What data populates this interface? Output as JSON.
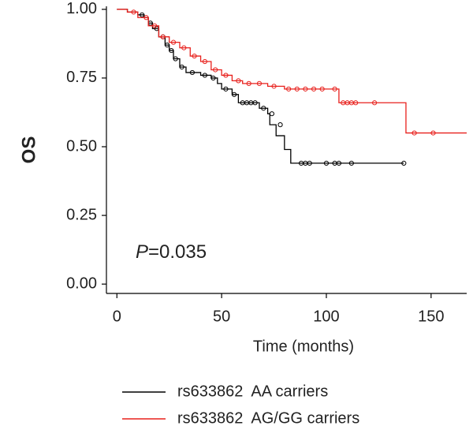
{
  "chart_data": {
    "type": "line",
    "step": true,
    "y_label": "OS",
    "x_label": "Time  (months)",
    "annotation": "P=0.035",
    "xlim": [
      -5,
      167
    ],
    "ylim": [
      -0.034,
      1.011
    ],
    "xticks": [
      0,
      50,
      100,
      150
    ],
    "yticks": [
      {
        "value": 0,
        "label": "0.00"
      },
      {
        "value": 0.25,
        "label": "0.25"
      },
      {
        "value": 0.5,
        "label": "0.50"
      },
      {
        "value": 0.75,
        "label": "0.75"
      },
      {
        "value": 1,
        "label": "1.00"
      }
    ],
    "series": [
      {
        "name": "rs633862  AA carriers",
        "color": "#000000",
        "x": [
          0,
          5,
          10,
          13,
          15,
          17,
          20,
          23,
          25,
          27,
          30,
          33,
          40,
          45,
          48,
          50,
          55,
          58,
          65,
          68,
          72,
          73,
          76,
          80,
          83,
          137
        ],
        "values": [
          1.0,
          0.99,
          0.98,
          0.97,
          0.95,
          0.93,
          0.9,
          0.87,
          0.85,
          0.82,
          0.79,
          0.77,
          0.76,
          0.75,
          0.73,
          0.71,
          0.69,
          0.66,
          0.66,
          0.64,
          0.62,
          0.58,
          0.54,
          0.49,
          0.44,
          0.44
        ],
        "censor_x": [
          12,
          16,
          19,
          22,
          24,
          26,
          28,
          31,
          36,
          42,
          46,
          52,
          56,
          60,
          62,
          64,
          66,
          70,
          74,
          78,
          88,
          90,
          92,
          100,
          104,
          106,
          112,
          137
        ],
        "censor_values": [
          0.98,
          0.95,
          0.93,
          0.9,
          0.87,
          0.85,
          0.82,
          0.79,
          0.77,
          0.76,
          0.75,
          0.71,
          0.69,
          0.66,
          0.66,
          0.66,
          0.66,
          0.64,
          0.62,
          0.58,
          0.44,
          0.44,
          0.44,
          0.44,
          0.44,
          0.44,
          0.44,
          0.44
        ]
      },
      {
        "name": "rs633862  AG/GG carriers",
        "color": "#e8201c",
        "x": [
          0,
          5,
          10,
          15,
          20,
          25,
          30,
          35,
          40,
          45,
          50,
          55,
          60,
          70,
          72,
          80,
          105,
          106,
          137,
          138,
          167
        ],
        "values": [
          1.0,
          0.99,
          0.97,
          0.94,
          0.9,
          0.88,
          0.86,
          0.83,
          0.81,
          0.78,
          0.76,
          0.74,
          0.73,
          0.73,
          0.72,
          0.71,
          0.71,
          0.66,
          0.66,
          0.55,
          0.55
        ],
        "censor_x": [
          8,
          14,
          18,
          22,
          27,
          32,
          37,
          42,
          47,
          52,
          58,
          63,
          68,
          75,
          82,
          86,
          90,
          94,
          98,
          104,
          108,
          110,
          112,
          114,
          123,
          142,
          151
        ],
        "censor_values": [
          0.99,
          0.97,
          0.94,
          0.9,
          0.88,
          0.86,
          0.83,
          0.81,
          0.78,
          0.76,
          0.74,
          0.73,
          0.73,
          0.72,
          0.71,
          0.71,
          0.71,
          0.71,
          0.71,
          0.71,
          0.66,
          0.66,
          0.66,
          0.66,
          0.66,
          0.55,
          0.55
        ]
      }
    ]
  }
}
